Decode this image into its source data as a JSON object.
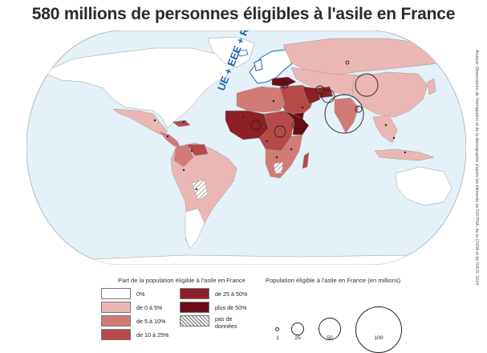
{
  "title": "580 millions de personnes éligibles à l'asile en France",
  "source": "Analyse Observatoire de l'immigration et de la démographie d'après les éléments de l'OFPRA, de la CNDA et de l'HCR. 2024",
  "map_label": "UE + EEE + RU",
  "colors": {
    "ocean": "#e4f1f8",
    "land_zero": "#ffffff",
    "c0_5": "#ebb7b5",
    "c5_10": "#d27a76",
    "c10_25": "#b54a49",
    "c25_50": "#8c2024",
    "c50p": "#6a0d14",
    "europe": "#1e62b2"
  },
  "legend_share": {
    "title": "Part de la population éligible à l'asile en France",
    "items": [
      {
        "label": "0%",
        "color": "#ffffff"
      },
      {
        "label": "de 0 à 5%",
        "color": "#ebb7b5"
      },
      {
        "label": "de 5 à 10%",
        "color": "#d27a76"
      },
      {
        "label": "de 10 à 25%",
        "color": "#b54a49"
      },
      {
        "label": "de 25 à 50%",
        "color": "#8c2024"
      },
      {
        "label": "plus de 50%",
        "color": "#6a0d14"
      },
      {
        "label": "pas de données",
        "color": "hatched"
      }
    ]
  },
  "legend_size": {
    "title": "Population éligible à l'asile en France (en millions)",
    "items": [
      {
        "label": "1",
        "value": 1
      },
      {
        "label": "25",
        "value": 25
      },
      {
        "label": "50",
        "value": 50
      },
      {
        "label": "100",
        "value": 100
      }
    ]
  }
}
